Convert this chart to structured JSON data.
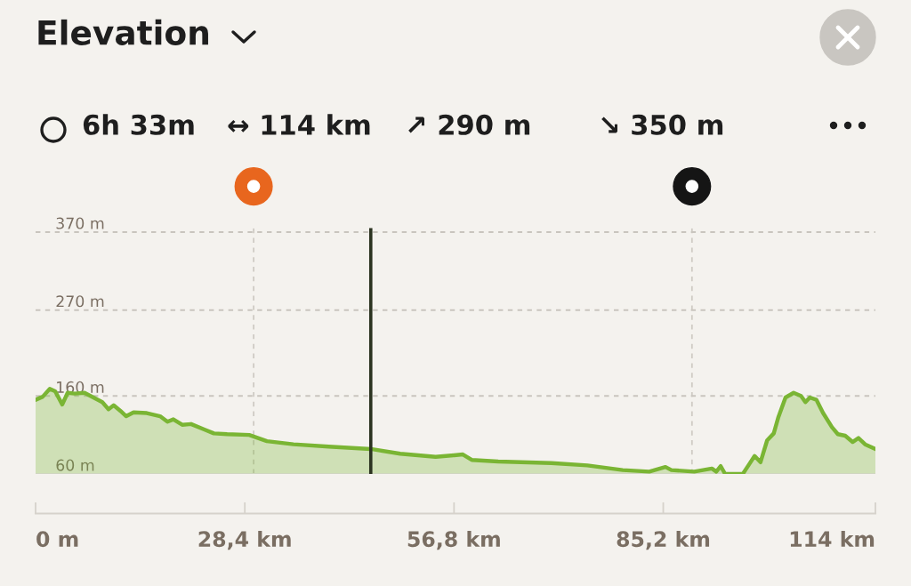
{
  "chart_data": {
    "type": "area",
    "title": "Elevation",
    "annotations": [
      "6h 33m",
      "↔ 114 km",
      "↗ 290 m",
      "↘ 350 m"
    ],
    "x": [
      0,
      0.97,
      1.93,
      2.66,
      3.62,
      4.35,
      5.31,
      6.64,
      7.85,
      9.06,
      9.9,
      10.6,
      11.5,
      12.3,
      13.3,
      15.1,
      16.9,
      17.9,
      18.7,
      19.9,
      21.1,
      22.9,
      24.2,
      26.0,
      29.0,
      31.4,
      35.0,
      39.8,
      45.5,
      49.5,
      54.3,
      56.8,
      58.0,
      59.2,
      62.8,
      70.0,
      74.9,
      79.7,
      83.3,
      85.5,
      86.3,
      89.4,
      91.8,
      92.4,
      93.0,
      93.6,
      96.0,
      96.9,
      97.6,
      98.4,
      99.3,
      100.2,
      100.8,
      101.8,
      102.9,
      103.9,
      104.5,
      105.1,
      106.0,
      106.9,
      108.1,
      108.9,
      109.9,
      110.9,
      111.7,
      112.6,
      114
    ],
    "series": [
      {
        "color": "#7ab534",
        "values": [
          155,
          159,
          169,
          166,
          149,
          164,
          163,
          164,
          158,
          152,
          143,
          148,
          141,
          134,
          139,
          138,
          134,
          127,
          130,
          123,
          124,
          117,
          112,
          111,
          110,
          102,
          98,
          95,
          92,
          86,
          82,
          84,
          85,
          78,
          76,
          74,
          71,
          65,
          63,
          69,
          65,
          63,
          67,
          63,
          70,
          60,
          60,
          73,
          83,
          75,
          103,
          112,
          132,
          158,
          164,
          160,
          152,
          158,
          155,
          138,
          120,
          111,
          109,
          101,
          106,
          98,
          92
        ]
      }
    ],
    "xlim": [
      0,
      114
    ],
    "xticks": [
      {
        "value": 0,
        "label": "0 m"
      },
      {
        "value": 28.4,
        "label": "28,4 km"
      },
      {
        "value": 56.8,
        "label": "56,8 km"
      },
      {
        "value": 85.2,
        "label": "85,2 km"
      },
      {
        "value": 114,
        "label": "114 km"
      }
    ],
    "ylim": [
      60,
      375
    ],
    "yticks": [
      {
        "value": 60,
        "label": "60 m"
      },
      {
        "value": 160,
        "label": "160 m"
      },
      {
        "value": 270,
        "label": "270 m"
      },
      {
        "value": 370,
        "label": "370 m"
      }
    ],
    "grid": "y",
    "ref_lines": [
      {
        "axis": "x",
        "value": 29.6,
        "color": "#cfcbc4",
        "line_style": "dotted"
      },
      {
        "axis": "x",
        "value": 89.1,
        "color": "#cfcbc4",
        "line_style": "dotted"
      },
      {
        "axis": "x",
        "value": 45.5,
        "color": "#2b3320",
        "line_style": "solid"
      }
    ]
  }
}
